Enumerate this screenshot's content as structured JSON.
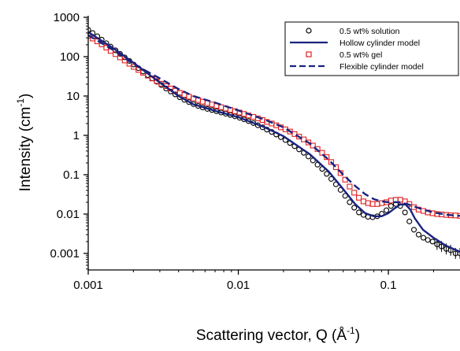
{
  "chart_data": {
    "type": "scatter",
    "xlabel": "Scattering vector, Q (Å",
    "xlabel_sup": "-1",
    "xlabel_close": ")",
    "ylabel": "Intensity (cm",
    "ylabel_sup": "-1",
    "ylabel_close": ")",
    "xscale": "log",
    "yscale": "log",
    "xlim": [
      0.001,
      0.3
    ],
    "ylim": [
      0.0005,
      1000
    ],
    "x_ticks": [
      {
        "value": 0.001,
        "label": "0.001"
      },
      {
        "value": 0.01,
        "label": "0.01"
      },
      {
        "value": 0.1,
        "label": "0.1"
      }
    ],
    "y_ticks": [
      {
        "value": 0.001,
        "label": "0.001"
      },
      {
        "value": 0.01,
        "label": "0.01"
      },
      {
        "value": 0.1,
        "label": "0.1"
      },
      {
        "value": 1,
        "label": "1"
      },
      {
        "value": 10,
        "label": "10"
      },
      {
        "value": 100,
        "label": "100"
      },
      {
        "value": 1000,
        "label": "1000"
      }
    ],
    "grid": false,
    "legend_position": "top-right",
    "series": [
      {
        "name": "0.5 wt% solution",
        "kind": "markers",
        "marker": "circle",
        "color": "#000000",
        "x": [
          0.001,
          0.00107,
          0.00115,
          0.00123,
          0.00132,
          0.00141,
          0.00152,
          0.00163,
          0.00175,
          0.00188,
          0.00201,
          0.00216,
          0.00232,
          0.00249,
          0.00267,
          0.00286,
          0.00307,
          0.0033,
          0.00354,
          0.0038,
          0.00407,
          0.00437,
          0.00469,
          0.00503,
          0.0054,
          0.00579,
          0.00622,
          0.00667,
          0.00716,
          0.00768,
          0.00824,
          0.00884,
          0.00949,
          0.0102,
          0.0109,
          0.0117,
          0.0126,
          0.0135,
          0.0145,
          0.0155,
          0.0167,
          0.0179,
          0.0192,
          0.0206,
          0.0221,
          0.0237,
          0.0254,
          0.0273,
          0.0293,
          0.0314,
          0.0337,
          0.0362,
          0.0388,
          0.0416,
          0.0447,
          0.048,
          0.0515,
          0.0552,
          0.0592,
          0.0636,
          0.0682,
          0.0732,
          0.0785,
          0.0843,
          0.0904,
          0.097,
          0.104,
          0.112,
          0.12,
          0.129,
          0.138,
          0.148,
          0.159,
          0.171,
          0.183,
          0.197,
          0.211,
          0.226,
          0.243,
          0.26,
          0.28,
          0.3
        ],
        "y": [
          480,
          400,
          330,
          270,
          220,
          180,
          145,
          118,
          96,
          78,
          63,
          51,
          42,
          34,
          28,
          23,
          19,
          15.5,
          13,
          11,
          9.3,
          8,
          7,
          6.2,
          5.6,
          5.1,
          4.7,
          4.4,
          4.1,
          3.8,
          3.55,
          3.3,
          3.05,
          2.8,
          2.55,
          2.3,
          2.05,
          1.8,
          1.6,
          1.4,
          1.22,
          1.05,
          0.9,
          0.76,
          0.64,
          0.53,
          0.44,
          0.36,
          0.29,
          0.23,
          0.18,
          0.14,
          0.105,
          0.078,
          0.057,
          0.041,
          0.029,
          0.02,
          0.0145,
          0.011,
          0.0095,
          0.0085,
          0.0083,
          0.0088,
          0.0102,
          0.0125,
          0.016,
          0.018,
          0.016,
          0.011,
          0.0065,
          0.004,
          0.003,
          0.0025,
          0.0022,
          0.002,
          0.0017,
          0.0015,
          0.0013,
          0.0012,
          0.001,
          0.001
        ]
      },
      {
        "name": "Hollow cylinder model",
        "kind": "solid-line",
        "color": "#1a237e",
        "x": [
          0.001,
          0.0015,
          0.002,
          0.003,
          0.004,
          0.005,
          0.007,
          0.01,
          0.015,
          0.02,
          0.03,
          0.04,
          0.05,
          0.06,
          0.07,
          0.08,
          0.09,
          0.1,
          0.11,
          0.12,
          0.13,
          0.14,
          0.15,
          0.17,
          0.2,
          0.24,
          0.3
        ],
        "y": [
          420,
          155,
          70,
          22,
          10,
          6.2,
          4.2,
          2.9,
          1.6,
          0.95,
          0.33,
          0.12,
          0.043,
          0.018,
          0.0105,
          0.0088,
          0.0088,
          0.0105,
          0.014,
          0.0175,
          0.0175,
          0.013,
          0.0078,
          0.004,
          0.0025,
          0.0016,
          0.0011
        ]
      },
      {
        "name": "0.5 wt% gel",
        "kind": "markers",
        "marker": "square",
        "color": "#e02020",
        "x": [
          0.001,
          0.00107,
          0.00115,
          0.00123,
          0.00132,
          0.00141,
          0.00152,
          0.00163,
          0.00175,
          0.00188,
          0.00201,
          0.00216,
          0.00232,
          0.00249,
          0.00267,
          0.00286,
          0.00307,
          0.0033,
          0.00354,
          0.0038,
          0.00407,
          0.00437,
          0.00469,
          0.00503,
          0.0054,
          0.00579,
          0.00622,
          0.00667,
          0.00716,
          0.00768,
          0.00824,
          0.00884,
          0.00949,
          0.0102,
          0.0109,
          0.0117,
          0.0126,
          0.0135,
          0.0145,
          0.0155,
          0.0167,
          0.0179,
          0.0192,
          0.0206,
          0.0221,
          0.0237,
          0.0254,
          0.0273,
          0.0293,
          0.0314,
          0.0337,
          0.0362,
          0.0388,
          0.0416,
          0.0447,
          0.048,
          0.0515,
          0.0552,
          0.0592,
          0.0636,
          0.0682,
          0.0732,
          0.0785,
          0.0843,
          0.0904,
          0.097,
          0.104,
          0.112,
          0.12,
          0.129,
          0.138,
          0.148,
          0.159,
          0.171,
          0.183,
          0.197,
          0.211,
          0.226,
          0.243,
          0.26,
          0.28,
          0.3
        ],
        "y": [
          340,
          290,
          245,
          205,
          170,
          140,
          116,
          96,
          80,
          66,
          55,
          46,
          39,
          33,
          28,
          24,
          20.5,
          17.8,
          15.5,
          13.6,
          12,
          10.7,
          9.6,
          8.7,
          7.9,
          7.2,
          6.6,
          6.1,
          5.6,
          5.2,
          4.8,
          4.45,
          4.1,
          3.8,
          3.5,
          3.2,
          2.95,
          2.7,
          2.45,
          2.2,
          2,
          1.8,
          1.6,
          1.42,
          1.25,
          1.08,
          0.93,
          0.79,
          0.66,
          0.55,
          0.45,
          0.36,
          0.28,
          0.21,
          0.155,
          0.11,
          0.075,
          0.05,
          0.035,
          0.026,
          0.021,
          0.019,
          0.018,
          0.018,
          0.019,
          0.02,
          0.022,
          0.023,
          0.023,
          0.021,
          0.018,
          0.015,
          0.013,
          0.012,
          0.011,
          0.0105,
          0.01,
          0.0098,
          0.0095,
          0.0093,
          0.0092,
          0.009
        ]
      },
      {
        "name": "Flexible cylinder model",
        "kind": "dashed-line",
        "color": "#1a237e",
        "x": [
          0.001,
          0.0015,
          0.002,
          0.003,
          0.004,
          0.005,
          0.007,
          0.01,
          0.015,
          0.02,
          0.03,
          0.04,
          0.05,
          0.06,
          0.07,
          0.08,
          0.09,
          0.1,
          0.12,
          0.14,
          0.17,
          0.2,
          0.25,
          0.3
        ],
        "y": [
          350,
          140,
          65,
          28,
          15,
          10,
          6.8,
          4.3,
          2.5,
          1.6,
          0.62,
          0.24,
          0.1,
          0.052,
          0.032,
          0.024,
          0.021,
          0.02,
          0.02,
          0.017,
          0.013,
          0.011,
          0.0095,
          0.009
        ]
      }
    ]
  }
}
